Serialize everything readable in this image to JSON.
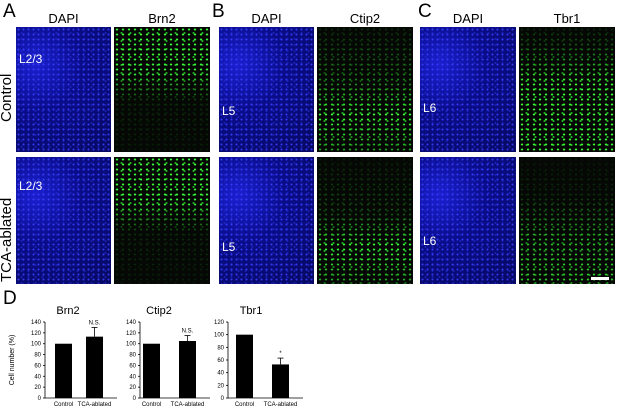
{
  "panels": {
    "A": {
      "letter": "A",
      "label_left": "DAPI",
      "label_right": "Brn2",
      "layer": "L2/3"
    },
    "B": {
      "letter": "B",
      "label_left": "DAPI",
      "label_right": "Ctip2",
      "layer": "L5"
    },
    "C": {
      "letter": "C",
      "label_left": "DAPI",
      "label_right": "Tbr1",
      "layer": "L6"
    },
    "D": {
      "letter": "D"
    }
  },
  "rows": {
    "top": "Control",
    "bottom": "TCA-ablated"
  },
  "colors": {
    "dapi": "#1a1fd0",
    "marker": "#3cff3c",
    "bar": "#000000"
  },
  "chart_data": [
    {
      "type": "bar",
      "title": "Brn2",
      "ylabel": "Cell number (%)",
      "categories": [
        "Control",
        "TCA-ablated"
      ],
      "values": [
        100,
        113
      ],
      "errors": [
        0,
        17
      ],
      "annotations": [
        "",
        "N.S."
      ],
      "ylim": [
        0,
        140
      ],
      "yticks": [
        "0",
        "20",
        "40",
        "60",
        "80",
        "100",
        "120",
        "140"
      ]
    },
    {
      "type": "bar",
      "title": "Ctip2",
      "ylabel": "",
      "categories": [
        "Control",
        "TCA-ablated"
      ],
      "values": [
        100,
        105
      ],
      "errors": [
        0,
        10
      ],
      "annotations": [
        "",
        "N.S."
      ],
      "ylim": [
        0,
        140
      ],
      "yticks": [
        "0",
        "20",
        "40",
        "60",
        "80",
        "100",
        "120",
        "140"
      ]
    },
    {
      "type": "bar",
      "title": "Tbr1",
      "ylabel": "",
      "categories": [
        "Control",
        "TCA-ablated"
      ],
      "values": [
        100,
        53
      ],
      "errors": [
        0,
        10
      ],
      "annotations": [
        "",
        "*"
      ],
      "ylim": [
        0,
        120
      ],
      "yticks": [
        "0",
        "20",
        "40",
        "60",
        "80",
        "100",
        "120"
      ]
    }
  ]
}
